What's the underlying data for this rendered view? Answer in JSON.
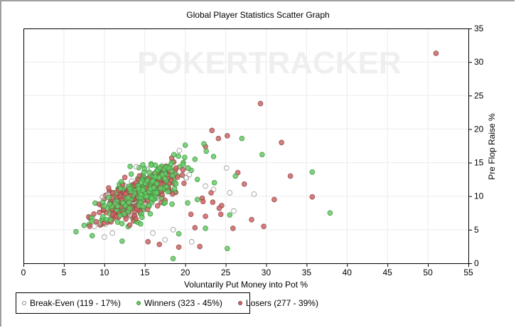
{
  "chart_data": {
    "type": "scatter",
    "title": "Global Player Statistics Scatter Graph",
    "xlabel": "Voluntarily Put Money into Pot %",
    "ylabel": "Pre Flop Raise %",
    "xlim": [
      0,
      55
    ],
    "ylim": [
      0,
      35
    ],
    "xticks": [
      0,
      5,
      10,
      15,
      20,
      25,
      30,
      35,
      40,
      45,
      50,
      55
    ],
    "yticks": [
      0,
      5,
      10,
      15,
      20,
      25,
      30,
      35
    ],
    "grid": true,
    "y_axis_position": "right",
    "legend_position": "bottom-left",
    "watermark": "POKERTRACKER",
    "series": [
      {
        "name": "Break-Even",
        "count": 119,
        "percent": "17%",
        "label": "Break-Even (119 - 17%)",
        "fill": "#ffffff",
        "stroke": "#888888",
        "cluster": {
          "cx": 14.5,
          "cy": 10.5,
          "n": 105,
          "seed": 11
        },
        "outliers": [
          [
            22.5,
            11.5
          ],
          [
            23.5,
            11.0
          ],
          [
            25.5,
            10.5
          ],
          [
            28.5,
            10.3
          ],
          [
            26,
            7.8
          ],
          [
            20.5,
            13.2
          ],
          [
            18.5,
            5
          ],
          [
            20.8,
            3.2
          ],
          [
            16,
            4.5
          ],
          [
            11,
            4.5
          ],
          [
            10,
            3.9
          ],
          [
            25.1,
            14.2
          ],
          [
            17.5,
            3.5
          ]
        ]
      },
      {
        "name": "Winners",
        "count": 323,
        "percent": "45%",
        "label": "Winners (323 - 45%)",
        "fill": "#66cc66",
        "stroke": "#3f8f3f",
        "cluster": {
          "cx": 14.5,
          "cy": 10.5,
          "n": 295,
          "seed": 23
        },
        "outliers": [
          [
            6.5,
            4.7
          ],
          [
            8.5,
            4.1
          ],
          [
            18.5,
            0.7
          ],
          [
            25.2,
            2.2
          ],
          [
            27,
            18.6
          ],
          [
            29.5,
            16.2
          ],
          [
            35.7,
            13.6
          ],
          [
            37.9,
            7.5
          ],
          [
            26.2,
            13.0
          ],
          [
            22.5,
            5.2
          ],
          [
            20.3,
            9.0
          ],
          [
            21.5,
            9.5
          ],
          [
            21.5,
            12.5
          ],
          [
            23.6,
            12.0
          ],
          [
            21.2,
            15.5
          ],
          [
            22.6,
            16.7
          ],
          [
            23.5,
            15.9
          ],
          [
            22.3,
            17.8
          ],
          [
            20,
            17.6
          ],
          [
            18.6,
            16.2
          ],
          [
            19.2,
            4.4
          ],
          [
            12.2,
            3.3
          ],
          [
            25.5,
            7.2
          ]
        ]
      },
      {
        "name": "Losers",
        "count": 277,
        "percent": "39%",
        "label": "Losers (277 - 39%)",
        "fill": "#cc6666",
        "stroke": "#8f4040",
        "cluster": {
          "cx": 14.0,
          "cy": 10.0,
          "n": 245,
          "seed": 37
        },
        "outliers": [
          [
            51,
            31.3
          ],
          [
            29.3,
            23.8
          ],
          [
            23.3,
            19.8
          ],
          [
            24.1,
            18.6
          ],
          [
            25.2,
            19
          ],
          [
            22.5,
            17.4
          ],
          [
            31.9,
            18
          ],
          [
            33,
            13
          ],
          [
            35.7,
            9.9
          ],
          [
            31,
            9.5
          ],
          [
            29.7,
            5.5
          ],
          [
            26.5,
            13.5
          ],
          [
            27.3,
            11.8
          ],
          [
            28.2,
            6.5
          ],
          [
            25.9,
            5.2
          ],
          [
            24.4,
            7.3
          ],
          [
            22.1,
            9.7
          ],
          [
            22.2,
            9.2
          ],
          [
            23.4,
            9.1
          ],
          [
            24.5,
            8.6
          ],
          [
            21.2,
            5.3
          ],
          [
            21.8,
            2.5
          ],
          [
            22.5,
            7.0
          ],
          [
            20.7,
            7.3
          ],
          [
            16.8,
            2.8
          ],
          [
            19.2,
            2.4
          ],
          [
            15.4,
            3.2
          ],
          [
            24.2,
            8.2
          ],
          [
            23.2,
            10.5
          ]
        ]
      }
    ]
  },
  "legend": {
    "items": [
      "Break-Even (119 - 17%)",
      "Winners (323 - 45%)",
      "Losers (277 - 39%)"
    ]
  }
}
